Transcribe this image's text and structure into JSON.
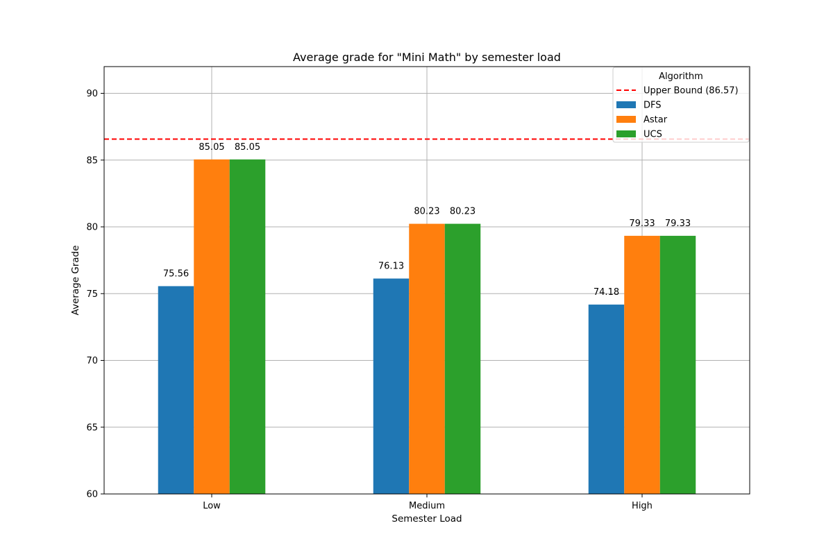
{
  "chart_data": {
    "type": "bar",
    "title": "Average grade for \"Mini Math\" by semester load",
    "xlabel": "Semester Load",
    "ylabel": "Average Grade",
    "categories": [
      "Low",
      "Medium",
      "High"
    ],
    "series": [
      {
        "name": "DFS",
        "values": [
          75.56,
          76.13,
          74.18
        ],
        "color": "#1f77b4"
      },
      {
        "name": "Astar",
        "values": [
          85.05,
          80.23,
          79.33
        ],
        "color": "#ff7f0e"
      },
      {
        "name": "UCS",
        "values": [
          85.05,
          80.23,
          79.33
        ],
        "color": "#2ca02c"
      }
    ],
    "data_labels": [
      [
        "75.56",
        "76.13",
        "74.18"
      ],
      [
        "85.05",
        "80.23",
        "79.33"
      ],
      [
        "85.05",
        "80.23",
        "79.33"
      ]
    ],
    "reference_line": {
      "label": "Upper Bound (86.57)",
      "value": 86.57,
      "color": "#ff0000",
      "style": "dashed"
    },
    "ylim": [
      60,
      92
    ],
    "yticks": [
      60,
      65,
      70,
      75,
      80,
      85,
      90
    ],
    "grid": true,
    "legend": {
      "title": "Algorithm",
      "position": "top-right"
    }
  }
}
